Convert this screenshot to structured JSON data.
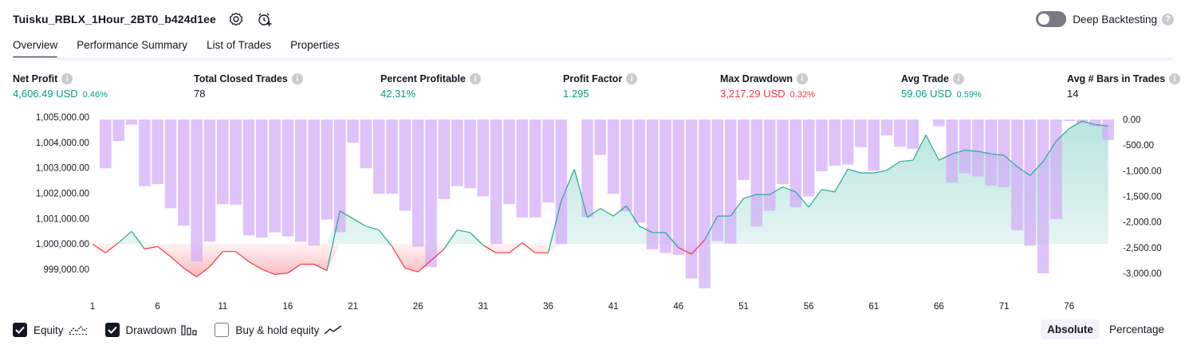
{
  "header": {
    "title": "Tuisku_RBLX_1Hour_2BT0_b424d1ee"
  },
  "deep_backtesting": {
    "label": "Deep Backtesting",
    "enabled": false,
    "help_icon": "question-icon"
  },
  "tabs": [
    {
      "label": "Overview",
      "active": true
    },
    {
      "label": "Performance Summary",
      "active": false
    },
    {
      "label": "List of Trades",
      "active": false
    },
    {
      "label": "Properties",
      "active": false
    }
  ],
  "metrics": [
    {
      "label": "Net Profit",
      "value": "4,606.49 USD",
      "pct": "0.46%",
      "color": "#089981"
    },
    {
      "label": "Total Closed Trades",
      "value": "78",
      "pct": "",
      "color": "#131722"
    },
    {
      "label": "Percent Profitable",
      "value": "42.31%",
      "pct": "",
      "color": "#089981"
    },
    {
      "label": "Profit Factor",
      "value": "1.295",
      "pct": "",
      "color": "#089981"
    },
    {
      "label": "Max Drawdown",
      "value": "3,217.29 USD",
      "pct": "0.32%",
      "color": "#f23645"
    },
    {
      "label": "Avg Trade",
      "value": "59.06 USD",
      "pct": "0.59%",
      "color": "#089981"
    },
    {
      "label": "Avg # Bars in Trades",
      "value": "14",
      "pct": "",
      "color": "#131722"
    }
  ],
  "chart_data": {
    "type": "area",
    "x_ticks": [
      "1",
      "6",
      "11",
      "16",
      "21",
      "26",
      "31",
      "36",
      "41",
      "46",
      "51",
      "56",
      "61",
      "66",
      "71",
      "76"
    ],
    "left_axis": {
      "ticks": [
        "1,005,000.00",
        "1,004,000.00",
        "1,003,000.00",
        "1,002,000.00",
        "1,001,000.00",
        "1,000,000.00",
        "999,000.00"
      ],
      "tick_values": [
        1005000,
        1004000,
        1003000,
        1002000,
        1001000,
        1000000,
        999000
      ]
    },
    "right_axis": {
      "ticks": [
        "0.00",
        "-500.00",
        "-1,000.00",
        "-1,500.00",
        "-2,000.00",
        "-2,500.00",
        "-3,000.00"
      ],
      "tick_values": [
        0,
        -500,
        -1000,
        -1500,
        -2000,
        -2500,
        -3000
      ]
    },
    "baseline": 1000000,
    "series": [
      {
        "name": "Equity",
        "color_up": "#22ab94",
        "color_down": "#f23645",
        "x": [
          1,
          2,
          3,
          4,
          5,
          6,
          7,
          8,
          9,
          10,
          11,
          12,
          13,
          14,
          15,
          16,
          17,
          18,
          19,
          20,
          21,
          22,
          23,
          24,
          25,
          26,
          27,
          28,
          29,
          30,
          31,
          32,
          33,
          34,
          35,
          36,
          37,
          38,
          39,
          40,
          41,
          42,
          43,
          44,
          45,
          46,
          47,
          48,
          49,
          50,
          51,
          52,
          53,
          54,
          55,
          56,
          57,
          58,
          59,
          60,
          61,
          62,
          63,
          64,
          65,
          66,
          67,
          68,
          69,
          70,
          71,
          72,
          73,
          74,
          75,
          76,
          77,
          78,
          79
        ],
        "values": [
          1000000,
          999650,
          1000050,
          1000500,
          999800,
          999900,
          999500,
          999050,
          998700,
          999100,
          999700,
          999700,
          999300,
          999000,
          998800,
          998850,
          999200,
          999200,
          998950,
          1001300,
          1001000,
          1000700,
          1000550,
          999900,
          999050,
          998900,
          999350,
          999800,
          1000550,
          1000450,
          999950,
          999650,
          999650,
          1000050,
          999650,
          999650,
          1001700,
          1002950,
          1001050,
          1001400,
          1001100,
          1001500,
          1000700,
          1000450,
          1000450,
          999850,
          999600,
          1000150,
          1001100,
          1001100,
          1001800,
          1001950,
          1001950,
          1002250,
          1002050,
          1001450,
          1002150,
          1002050,
          1002950,
          1002800,
          1002800,
          1002900,
          1003250,
          1003300,
          1004300,
          1003300,
          1003550,
          1003700,
          1003650,
          1003550,
          1003500,
          1003050,
          1002700,
          1003250,
          1004050,
          1004550,
          1004850,
          1004700,
          1004650
        ]
      },
      {
        "name": "Drawdown",
        "color": "#d3aaf8",
        "x": [
          1,
          2,
          3,
          4,
          5,
          6,
          7,
          8,
          9,
          10,
          11,
          12,
          13,
          14,
          15,
          16,
          17,
          18,
          19,
          20,
          21,
          22,
          23,
          24,
          25,
          26,
          27,
          28,
          29,
          30,
          31,
          32,
          33,
          34,
          35,
          36,
          37,
          38,
          39,
          40,
          41,
          42,
          43,
          44,
          45,
          46,
          47,
          48,
          49,
          50,
          51,
          52,
          53,
          54,
          55,
          56,
          57,
          58,
          59,
          60,
          61,
          62,
          63,
          64,
          65,
          66,
          67,
          68,
          69,
          70,
          71,
          72,
          73,
          74,
          75,
          76,
          77,
          78,
          79
        ],
        "values": [
          0,
          -950,
          -420,
          -100,
          -1300,
          -1260,
          -1730,
          -2070,
          -2770,
          -2380,
          -1650,
          -1660,
          -2260,
          -2300,
          -2200,
          -2280,
          -2380,
          -2460,
          -1950,
          -2200,
          -450,
          -950,
          -1450,
          -1450,
          -1780,
          -2480,
          -2880,
          -1550,
          -1300,
          -1340,
          -1500,
          -2430,
          -1650,
          -1910,
          -1910,
          -1620,
          -2430,
          0,
          -1900,
          -690,
          -1450,
          -1790,
          -2010,
          -2530,
          -2600,
          -2640,
          -3100,
          -3290,
          -2370,
          -2420,
          -1180,
          -2090,
          -1780,
          -1260,
          -1710,
          -1500,
          -1010,
          -900,
          -880,
          -540,
          -1000,
          -310,
          -530,
          -570,
          0,
          -130,
          -1230,
          -1050,
          -1110,
          -1290,
          -1320,
          -2160,
          -2460,
          -3000,
          -1940,
          -30,
          -70,
          -130,
          -400
        ]
      }
    ],
    "legend": [
      {
        "label": "Equity",
        "checked": true,
        "icon": "equity-line-icon"
      },
      {
        "label": "Drawdown",
        "checked": true,
        "icon": "drawdown-bars-icon"
      },
      {
        "label": "Buy & hold equity",
        "checked": false,
        "icon": "buyhold-line-icon"
      }
    ]
  },
  "scale_switch": {
    "options": [
      "Absolute",
      "Percentage"
    ],
    "selected": "Absolute"
  }
}
